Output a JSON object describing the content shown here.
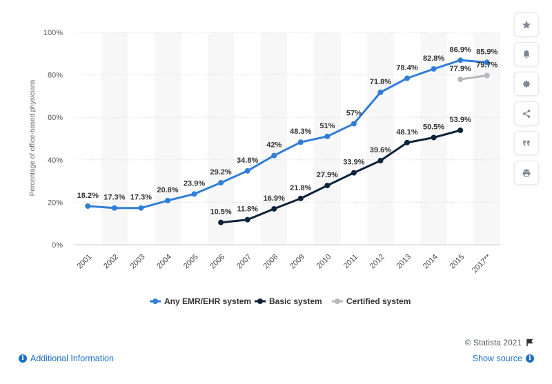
{
  "chart_data": {
    "type": "line",
    "title": "",
    "xlabel": "",
    "ylabel": "Percentage of office-based physicians",
    "ylim": [
      0,
      100
    ],
    "yticks": [
      "0%",
      "20%",
      "40%",
      "60%",
      "80%",
      "100%"
    ],
    "categories": [
      "2001",
      "2002",
      "2003",
      "2004",
      "2005",
      "2006",
      "2007",
      "2008",
      "2009",
      "2010",
      "2011",
      "2012",
      "2013",
      "2014",
      "2015",
      "2017**"
    ],
    "legend_position": "bottom",
    "grid": true,
    "series": [
      {
        "name": "Any EMR/EHR system",
        "color": "#2f7ed8",
        "values": [
          18.2,
          17.3,
          17.3,
          20.8,
          23.9,
          29.2,
          34.8,
          42,
          48.3,
          51,
          57,
          71.8,
          78.4,
          82.8,
          86.9,
          85.9
        ],
        "labels": [
          "18.2%",
          "17.3%",
          "17.3%",
          "20.8%",
          "23.9%",
          "29.2%",
          "34.8%",
          "42%",
          "48.3%",
          "51%",
          "57%",
          "71.8%",
          "78.4%",
          "82.8%",
          "86.9%",
          "85.9%"
        ]
      },
      {
        "name": "Basic system",
        "color": "#0d233a",
        "values": [
          null,
          null,
          null,
          null,
          null,
          10.5,
          11.8,
          16.9,
          21.8,
          27.9,
          33.9,
          39.6,
          48.1,
          50.5,
          53.9,
          null
        ],
        "labels": [
          null,
          null,
          null,
          null,
          null,
          "10.5%",
          "11.8%",
          "16.9%",
          "21.8%",
          "27.9%",
          "33.9%",
          "39.6%",
          "48.1%",
          "50.5%",
          "53.9%",
          null
        ]
      },
      {
        "name": "Certified system",
        "color": "#b5b8bd",
        "values": [
          null,
          null,
          null,
          null,
          null,
          null,
          null,
          null,
          null,
          null,
          null,
          null,
          null,
          null,
          77.9,
          79.7
        ],
        "labels": [
          null,
          null,
          null,
          null,
          null,
          null,
          null,
          null,
          null,
          null,
          null,
          null,
          null,
          null,
          "77.9%",
          "79.7%"
        ]
      }
    ]
  },
  "footer": {
    "copyright": "© Statista 2021",
    "additional_info": "Additional Information",
    "show_source": "Show source"
  },
  "toolbar": {
    "icons": [
      "star-icon",
      "bell-icon",
      "gear-icon",
      "share-icon",
      "quote-icon",
      "print-icon"
    ]
  }
}
